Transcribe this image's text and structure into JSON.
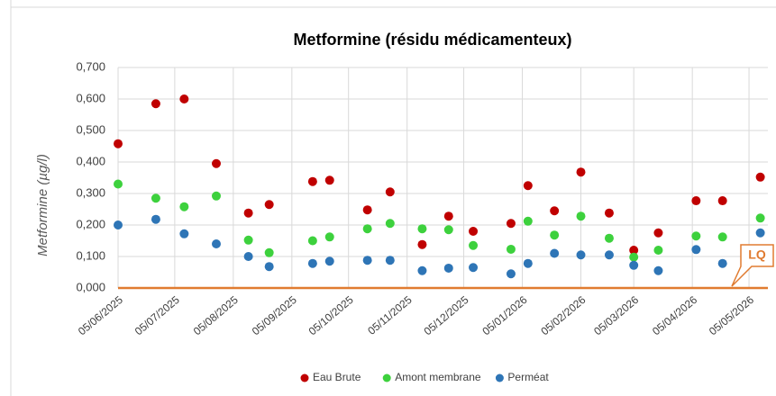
{
  "chart_data": {
    "type": "scatter",
    "title": "Metformine (résidu médicamenteux)",
    "y_label": "Metformine (µg/l)",
    "x": [
      "05/06/2025",
      "25/06/2025",
      "10/07/2025",
      "27/07/2025",
      "13/08/2025",
      "24/08/2025",
      "16/09/2025",
      "25/09/2025",
      "15/10/2025",
      "27/10/2025",
      "13/11/2025",
      "27/11/2025",
      "10/12/2025",
      "30/12/2025",
      "08/01/2026",
      "22/01/2026",
      "05/02/2026",
      "20/02/2026",
      "05/03/2026",
      "18/03/2026",
      "07/04/2026",
      "21/04/2026",
      "11/05/2026"
    ],
    "series": [
      {
        "name": "Eau Brute",
        "color": "#c00000",
        "values": [
          0.458,
          0.585,
          0.6,
          0.395,
          0.238,
          0.265,
          0.338,
          0.342,
          0.248,
          0.305,
          0.138,
          0.228,
          0.18,
          0.205,
          0.325,
          0.245,
          0.368,
          0.238,
          0.12,
          0.175,
          0.277,
          0.277,
          0.352
        ]
      },
      {
        "name": "Amont membrane",
        "color": "#3dd13d",
        "values": [
          0.33,
          0.285,
          0.258,
          0.292,
          0.152,
          0.112,
          0.15,
          0.162,
          0.188,
          0.205,
          0.188,
          0.185,
          0.135,
          0.123,
          0.212,
          0.168,
          0.228,
          0.158,
          0.098,
          0.12,
          0.165,
          0.162,
          0.222
        ]
      },
      {
        "name": "Perméat",
        "color": "#2e75b6",
        "values": [
          0.2,
          0.218,
          0.172,
          0.14,
          0.1,
          0.068,
          0.078,
          0.085,
          0.088,
          0.088,
          0.055,
          0.063,
          0.065,
          0.045,
          0.078,
          0.11,
          0.105,
          0.105,
          0.072,
          0.055,
          0.122,
          0.078,
          0.175
        ]
      }
    ],
    "xlim": [
      "05/06/2025",
      "15/05/2026"
    ],
    "xticks": [
      "05/06/2025",
      "05/07/2025",
      "05/08/2025",
      "05/09/2025",
      "05/10/2025",
      "05/11/2025",
      "05/12/2025",
      "05/01/2026",
      "05/02/2026",
      "05/03/2026",
      "05/04/2026",
      "05/05/2026"
    ],
    "ylim": [
      0,
      0.7
    ],
    "yticks": [
      {
        "value": 0,
        "label": "0,000"
      },
      {
        "value": 0.1,
        "label": "0,100"
      },
      {
        "value": 0.2,
        "label": "0,200"
      },
      {
        "value": 0.3,
        "label": "0,300"
      },
      {
        "value": 0.4,
        "label": "0,400"
      },
      {
        "value": 0.5,
        "label": "0,500"
      },
      {
        "value": 0.6,
        "label": "0,600"
      },
      {
        "value": 0.7,
        "label": "0,700"
      }
    ],
    "grid": true,
    "legend": "bottom",
    "limit_line": {
      "label": "LQ",
      "value": 0,
      "color": "#e07b30"
    }
  }
}
